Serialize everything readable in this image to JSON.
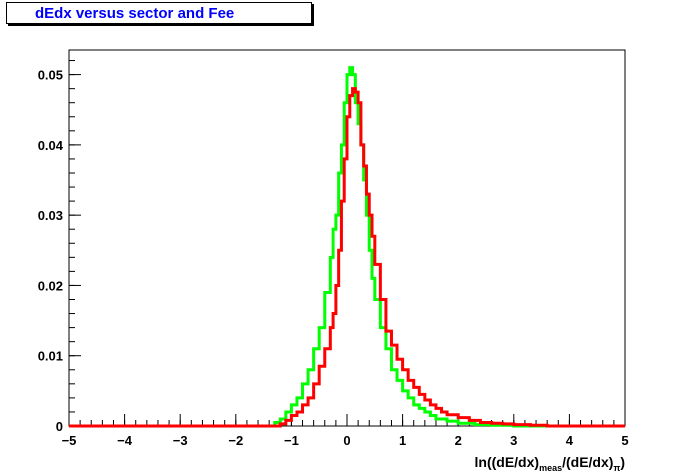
{
  "chart_data": {
    "type": "histogram-step",
    "title": "dEdx versus sector and Fee",
    "xlabel": {
      "main": "ln((dE/dx)",
      "sub1": "meas",
      "mid": "/(dE/dx)",
      "sub2": "π",
      "end": ")"
    },
    "ylabel": "",
    "xlim": [
      -5,
      5
    ],
    "ylim": [
      0,
      0.0535
    ],
    "x_ticks": [
      -5,
      -4,
      -3,
      -2,
      -1,
      0,
      1,
      2,
      3,
      4,
      5
    ],
    "x_tick_labels": [
      "−5",
      "−4",
      "−3",
      "−2",
      "−1",
      "0",
      "1",
      "2",
      "3",
      "4",
      "5"
    ],
    "y_ticks": [
      0,
      0.01,
      0.02,
      0.03,
      0.04,
      0.05
    ],
    "y_tick_labels": [
      "0",
      "0.01",
      "0.02",
      "0.03",
      "0.04",
      "0.05"
    ],
    "bin_width": 0.1,
    "series": [
      {
        "color": "#00ff00",
        "points": [
          [
            -5,
            0
          ],
          [
            -1.5,
            0
          ],
          [
            -1.3,
            0.0005
          ],
          [
            -1.2,
            0.001
          ],
          [
            -1.1,
            0.002
          ],
          [
            -1.0,
            0.003
          ],
          [
            -0.9,
            0.004
          ],
          [
            -0.8,
            0.006
          ],
          [
            -0.7,
            0.008
          ],
          [
            -0.6,
            0.011
          ],
          [
            -0.5,
            0.014
          ],
          [
            -0.4,
            0.019
          ],
          [
            -0.3,
            0.024
          ],
          [
            -0.25,
            0.028
          ],
          [
            -0.2,
            0.03
          ],
          [
            -0.15,
            0.036
          ],
          [
            -0.1,
            0.04
          ],
          [
            -0.05,
            0.046
          ],
          [
            0.0,
            0.05
          ],
          [
            0.05,
            0.051
          ],
          [
            0.1,
            0.05
          ],
          [
            0.15,
            0.046
          ],
          [
            0.2,
            0.043
          ],
          [
            0.25,
            0.04
          ],
          [
            0.3,
            0.035
          ],
          [
            0.35,
            0.03
          ],
          [
            0.4,
            0.025
          ],
          [
            0.45,
            0.021
          ],
          [
            0.5,
            0.018
          ],
          [
            0.6,
            0.014
          ],
          [
            0.7,
            0.011
          ],
          [
            0.8,
            0.008
          ],
          [
            0.9,
            0.0065
          ],
          [
            1.0,
            0.005
          ],
          [
            1.1,
            0.004
          ],
          [
            1.2,
            0.003
          ],
          [
            1.3,
            0.0025
          ],
          [
            1.4,
            0.002
          ],
          [
            1.5,
            0.0015
          ],
          [
            1.6,
            0.001
          ],
          [
            1.8,
            0.0007
          ],
          [
            2.0,
            0.0004
          ],
          [
            2.3,
            0.0002
          ],
          [
            2.6,
            0.0001
          ],
          [
            3.0,
            0
          ],
          [
            5,
            0
          ]
        ]
      },
      {
        "color": "#ff0000",
        "points": [
          [
            -5,
            0
          ],
          [
            -1.3,
            0
          ],
          [
            -1.2,
            0.0003
          ],
          [
            -1.1,
            0.0008
          ],
          [
            -1.0,
            0.0015
          ],
          [
            -0.9,
            0.002
          ],
          [
            -0.8,
            0.003
          ],
          [
            -0.7,
            0.004
          ],
          [
            -0.6,
            0.006
          ],
          [
            -0.5,
            0.0085
          ],
          [
            -0.4,
            0.011
          ],
          [
            -0.3,
            0.014
          ],
          [
            -0.25,
            0.016
          ],
          [
            -0.2,
            0.02
          ],
          [
            -0.15,
            0.025
          ],
          [
            -0.1,
            0.032
          ],
          [
            -0.05,
            0.038
          ],
          [
            0.0,
            0.044
          ],
          [
            0.05,
            0.047
          ],
          [
            0.1,
            0.048
          ],
          [
            0.15,
            0.0475
          ],
          [
            0.2,
            0.046
          ],
          [
            0.25,
            0.04
          ],
          [
            0.3,
            0.037
          ],
          [
            0.35,
            0.033
          ],
          [
            0.4,
            0.03
          ],
          [
            0.45,
            0.027
          ],
          [
            0.5,
            0.023
          ],
          [
            0.6,
            0.018
          ],
          [
            0.7,
            0.0135
          ],
          [
            0.8,
            0.0115
          ],
          [
            0.9,
            0.0095
          ],
          [
            1.0,
            0.008
          ],
          [
            1.1,
            0.0065
          ],
          [
            1.2,
            0.0055
          ],
          [
            1.3,
            0.0045
          ],
          [
            1.4,
            0.0037
          ],
          [
            1.5,
            0.003
          ],
          [
            1.6,
            0.0025
          ],
          [
            1.7,
            0.002
          ],
          [
            1.8,
            0.0016
          ],
          [
            2.0,
            0.0012
          ],
          [
            2.2,
            0.0008
          ],
          [
            2.4,
            0.0005
          ],
          [
            2.6,
            0.0004
          ],
          [
            2.8,
            0.0003
          ],
          [
            3.0,
            0.0002
          ],
          [
            3.3,
            0.0001
          ],
          [
            3.6,
            0
          ],
          [
            5,
            0
          ]
        ]
      }
    ]
  }
}
